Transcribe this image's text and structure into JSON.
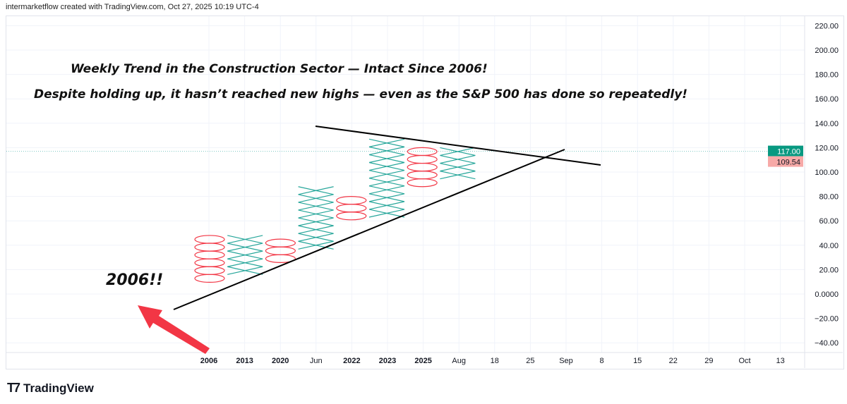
{
  "header": {
    "credit": "intermarketflow created with TradingView.com, Oct 27, 2025 10:19 UTC-4"
  },
  "annotations": {
    "line1": "Weekly Trend in the Construction Sector — Intact Since 2006!",
    "line2": "Despite holding up, it hasn’t reached new highs — even as the S&P 500 has done so repeatedly!",
    "year_note": "2006!!"
  },
  "price_axis": {
    "ticks": [
      "220.00",
      "200.00",
      "180.00",
      "160.00",
      "140.00",
      "120.00",
      "100.00",
      "80.00",
      "60.00",
      "40.00",
      "20.00",
      "0.0000",
      "−20.00",
      "−40.00"
    ],
    "last_price": "117.00",
    "last_price_color": "#089981",
    "marker_price": "109.54",
    "marker_color": "#f7a9a7"
  },
  "time_axis": {
    "labels": [
      "2006",
      "2013",
      "2020",
      "Jun",
      "2022",
      "2023",
      "2025",
      "Aug",
      "18",
      "25",
      "Sep",
      "8",
      "15",
      "22",
      "29",
      "Oct",
      "13"
    ],
    "bold": [
      "2006",
      "2013",
      "2020",
      "2022",
      "2023",
      "2025"
    ]
  },
  "chart_data": {
    "type": "point-and-figure",
    "box_size": 6.4,
    "columns": [
      {
        "type": "O",
        "high": 48,
        "low": 12
      },
      {
        "type": "X",
        "low": 15,
        "high": 48
      },
      {
        "type": "O",
        "high": 45,
        "low": 25
      },
      {
        "type": "X",
        "low": 35,
        "high": 88
      },
      {
        "type": "O",
        "high": 80,
        "low": 58
      },
      {
        "type": "X",
        "low": 62,
        "high": 127
      },
      {
        "type": "O",
        "high": 120,
        "low": 88
      },
      {
        "type": "X",
        "low": 95,
        "high": 120
      }
    ],
    "colors": {
      "X": "#26a69a",
      "O": "#f23645"
    },
    "ylim": [
      -50,
      225
    ],
    "last_price": 117
  },
  "brand": {
    "name": "TradingView"
  }
}
